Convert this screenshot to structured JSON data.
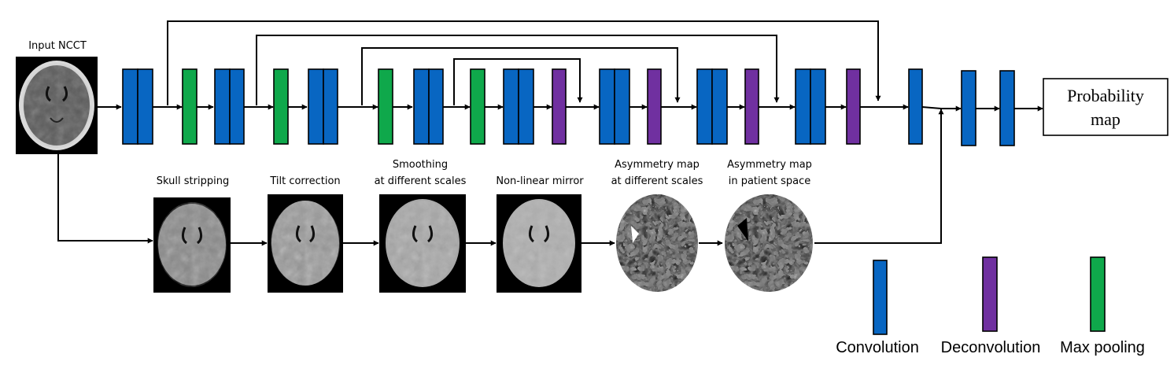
{
  "input": {
    "label": "Input NCCT"
  },
  "output": {
    "line1": "Probability",
    "line2": "map"
  },
  "stages": [
    {
      "line1": "Skull stripping",
      "line2": ""
    },
    {
      "line1": "Tilt correction",
      "line2": ""
    },
    {
      "line1": "Smoothing",
      "line2": "at different scales"
    },
    {
      "line1": "Non-linear mirror",
      "line2": ""
    },
    {
      "line1": "Asymmetry map",
      "line2": "at different scales"
    },
    {
      "line1": "Asymmetry map",
      "line2": "in patient space"
    }
  ],
  "legend": {
    "convolution": "Convolution",
    "deconvolution": "Deconvolution",
    "max_pooling": "Max pooling"
  },
  "colors": {
    "convolution": "#0866c2",
    "deconvolution": "#7030a0",
    "max_pooling": "#0fa84b"
  }
}
